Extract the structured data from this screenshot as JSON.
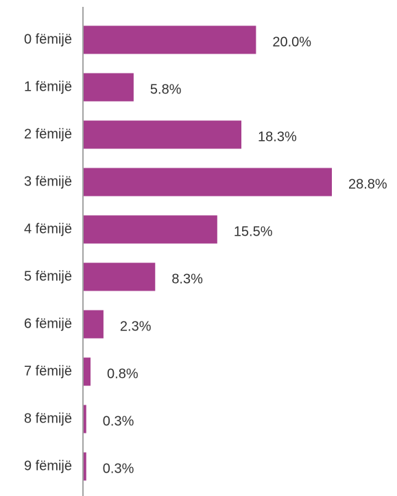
{
  "chart_data": {
    "type": "bar",
    "orientation": "horizontal",
    "categories": [
      "0 fëmijë",
      "1 fëmijë",
      "2 fëmijë",
      "3 fëmijë",
      "4 fëmijë",
      "5 fëmijë",
      "6 fëmijë",
      "7 fëmijë",
      "8 fëmijë",
      "9 fëmijë"
    ],
    "values": [
      20.0,
      5.8,
      18.3,
      28.8,
      15.5,
      8.3,
      2.3,
      0.8,
      0.3,
      0.3
    ],
    "value_labels": [
      "20.0%",
      "5.8%",
      "18.3%",
      "28.8%",
      "15.5%",
      "8.3%",
      "2.3%",
      "0.8%",
      "0.3%",
      "0.3%"
    ],
    "color": "#a63d8d"
  }
}
